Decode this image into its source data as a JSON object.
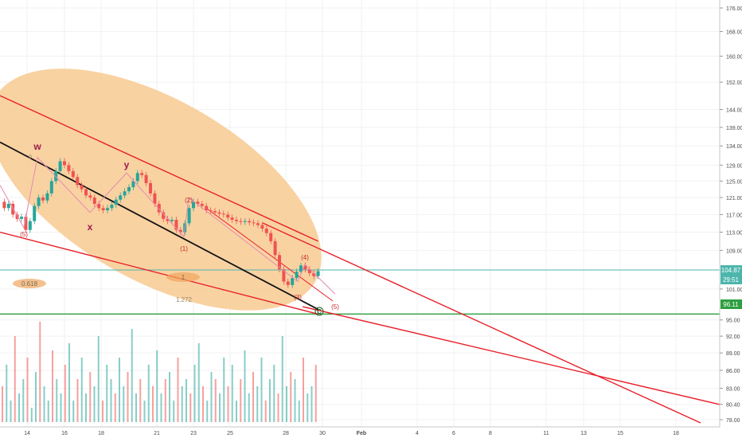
{
  "chart_data": {
    "type": "candlestick",
    "price_axis": {
      "scale": "log",
      "ticks": [
        "176.00",
        "168.00",
        "160.00",
        "152.00",
        "144.00",
        "139.00",
        "134.00",
        "129.00",
        "125.00",
        "121.00",
        "117.00",
        "113.00",
        "109.00",
        "101.00",
        "95.00",
        "92.00",
        "89.00",
        "86.00",
        "83.00",
        "80.40",
        "78.00"
      ],
      "last_price": "104.87",
      "countdown": "29:51",
      "horizontal_level": "96.11"
    },
    "time_axis": {
      "labels": [
        {
          "text": "14",
          "bold": false
        },
        {
          "text": "16",
          "bold": false
        },
        {
          "text": "18",
          "bold": false
        },
        {
          "text": "21",
          "bold": false
        },
        {
          "text": "23",
          "bold": false
        },
        {
          "text": "25",
          "bold": false
        },
        {
          "text": "28",
          "bold": false
        },
        {
          "text": "30",
          "bold": false
        },
        {
          "text": "Feb",
          "bold": true
        },
        {
          "text": "4",
          "bold": false
        },
        {
          "text": "6",
          "bold": false
        },
        {
          "text": "8",
          "bold": false
        },
        {
          "text": "11",
          "bold": false
        },
        {
          "text": "13",
          "bold": false
        },
        {
          "text": "15",
          "bold": false
        },
        {
          "text": "18",
          "bold": false
        }
      ]
    },
    "elliott_wave_labels": {
      "primary": [
        "w",
        "x",
        "y"
      ],
      "impulse": [
        "(1)",
        "(2)",
        "(3)",
        "(4)",
        "(5)"
      ],
      "earlier_wave": "(5)",
      "correction_end": "C"
    },
    "fibonacci_labels": [
      "0.618",
      "1",
      "1.272",
      "0"
    ],
    "price_path": [
      [
        0,
        120
      ],
      [
        2,
        118.5
      ],
      [
        4,
        119.5
      ],
      [
        6,
        117
      ],
      [
        8,
        116
      ],
      [
        10,
        116.5
      ],
      [
        12,
        113.5
      ],
      [
        14,
        115.5
      ],
      [
        16,
        119
      ],
      [
        18,
        121
      ],
      [
        20,
        120.3
      ],
      [
        22,
        122
      ],
      [
        24,
        125
      ],
      [
        26,
        127.5
      ],
      [
        28,
        130
      ],
      [
        30,
        129
      ],
      [
        32,
        127.5
      ],
      [
        34,
        126
      ],
      [
        36,
        124
      ],
      [
        38,
        123
      ],
      [
        40,
        121.5
      ],
      [
        42,
        121
      ],
      [
        44,
        119.5
      ],
      [
        46,
        118.5
      ],
      [
        48,
        118
      ],
      [
        50,
        118.5
      ],
      [
        52,
        119.3
      ],
      [
        54,
        120.5
      ],
      [
        56,
        121.5
      ],
      [
        58,
        122.5
      ],
      [
        60,
        123.5
      ],
      [
        62,
        125
      ],
      [
        64,
        127
      ],
      [
        66,
        126.5
      ],
      [
        68,
        124.5
      ],
      [
        70,
        122
      ],
      [
        72,
        119.5
      ],
      [
        74,
        117.5
      ],
      [
        76,
        116
      ],
      [
        78,
        115.5
      ],
      [
        80,
        115.8
      ],
      [
        82,
        113.5
      ],
      [
        84,
        113
      ],
      [
        86,
        115
      ],
      [
        88,
        118.5
      ],
      [
        90,
        120
      ],
      [
        92,
        119.5
      ],
      [
        94,
        119
      ],
      [
        96,
        118
      ],
      [
        98,
        117.8
      ],
      [
        100,
        117.5
      ],
      [
        102,
        117.2
      ],
      [
        104,
        117
      ],
      [
        106,
        116.3
      ],
      [
        108,
        115.8
      ],
      [
        110,
        115.5
      ],
      [
        112,
        115.3
      ],
      [
        114,
        115.5
      ],
      [
        116,
        115.2
      ],
      [
        118,
        115
      ],
      [
        120,
        114.6
      ],
      [
        122,
        113.8
      ],
      [
        124,
        112.8
      ],
      [
        126,
        111
      ],
      [
        128,
        108
      ],
      [
        130,
        105
      ],
      [
        132,
        102.5
      ],
      [
        134,
        101.8
      ],
      [
        136,
        103.2
      ],
      [
        138,
        104.5
      ],
      [
        140,
        105.8
      ],
      [
        142,
        105
      ],
      [
        144,
        104.2
      ],
      [
        146,
        103.6
      ],
      [
        148,
        104.6
      ]
    ],
    "volume_path": [
      5,
      8,
      3,
      12,
      4,
      6,
      9,
      2,
      7,
      14,
      5,
      3,
      10,
      6,
      4,
      8,
      11,
      3,
      6,
      9,
      4,
      7,
      5,
      12,
      3,
      8,
      6,
      4,
      9,
      5,
      7,
      13,
      4,
      6,
      3,
      8,
      5,
      10,
      4,
      6,
      7,
      3,
      9,
      5,
      6,
      4,
      8,
      11,
      5,
      3,
      7,
      6,
      4,
      9,
      5,
      8,
      3,
      6,
      10,
      4,
      7,
      5,
      9,
      3,
      6,
      8,
      4,
      12,
      5,
      7,
      6,
      3,
      9,
      4,
      5,
      8
    ],
    "trendlines": [
      {
        "name": "channel-upper",
        "color": "#e8202a",
        "p1": [
          0,
          148
        ],
        "p2": [
          148,
          111
        ]
      },
      {
        "name": "channel-lower",
        "color": "#e8202a",
        "p1": [
          0,
          113
        ],
        "p2": [
          148,
          96.1
        ]
      },
      {
        "name": "median-black",
        "color": "#111111",
        "p1": [
          0,
          135
        ],
        "p2": [
          148,
          97
        ]
      }
    ],
    "colors": {
      "ellipse": "#f7c78b",
      "up": "#26a69a",
      "down": "#ef5350",
      "wave": "#c2185b",
      "teal_level": "#4db6ac",
      "green_level": "#2e9e41",
      "red_line": "#e8202a"
    }
  }
}
